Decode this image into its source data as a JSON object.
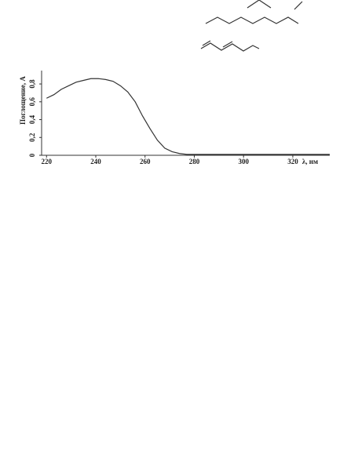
{
  "chart_data": {
    "type": "line",
    "ylabel": "Поглощение, A",
    "xlabel": "λ, нм",
    "x": [
      220,
      223,
      226,
      229,
      232,
      235,
      238,
      241,
      244,
      247,
      250,
      253,
      256,
      259,
      262,
      265,
      268,
      271,
      274,
      277,
      280,
      290,
      300,
      310,
      320,
      330,
      335
    ],
    "values": [
      0.64,
      0.68,
      0.74,
      0.78,
      0.82,
      0.84,
      0.86,
      0.86,
      0.85,
      0.83,
      0.78,
      0.71,
      0.6,
      0.44,
      0.3,
      0.17,
      0.08,
      0.04,
      0.02,
      0.01,
      0.01,
      0.01,
      0.01,
      0.01,
      0.01,
      0.01,
      0.01
    ],
    "color": "#333333",
    "xlim": [
      218,
      335
    ],
    "xticks": [
      220,
      240,
      260,
      280,
      300,
      320
    ],
    "ylim": [
      0,
      0.95
    ],
    "yticks": [
      0,
      {
        "value": 0.2,
        "label": "0,2"
      },
      {
        "value": 0.4,
        "label": "0,4"
      },
      {
        "value": 0.6,
        "label": "0,6"
      },
      {
        "value": 0.8,
        "label": "0,8"
      }
    ]
  }
}
